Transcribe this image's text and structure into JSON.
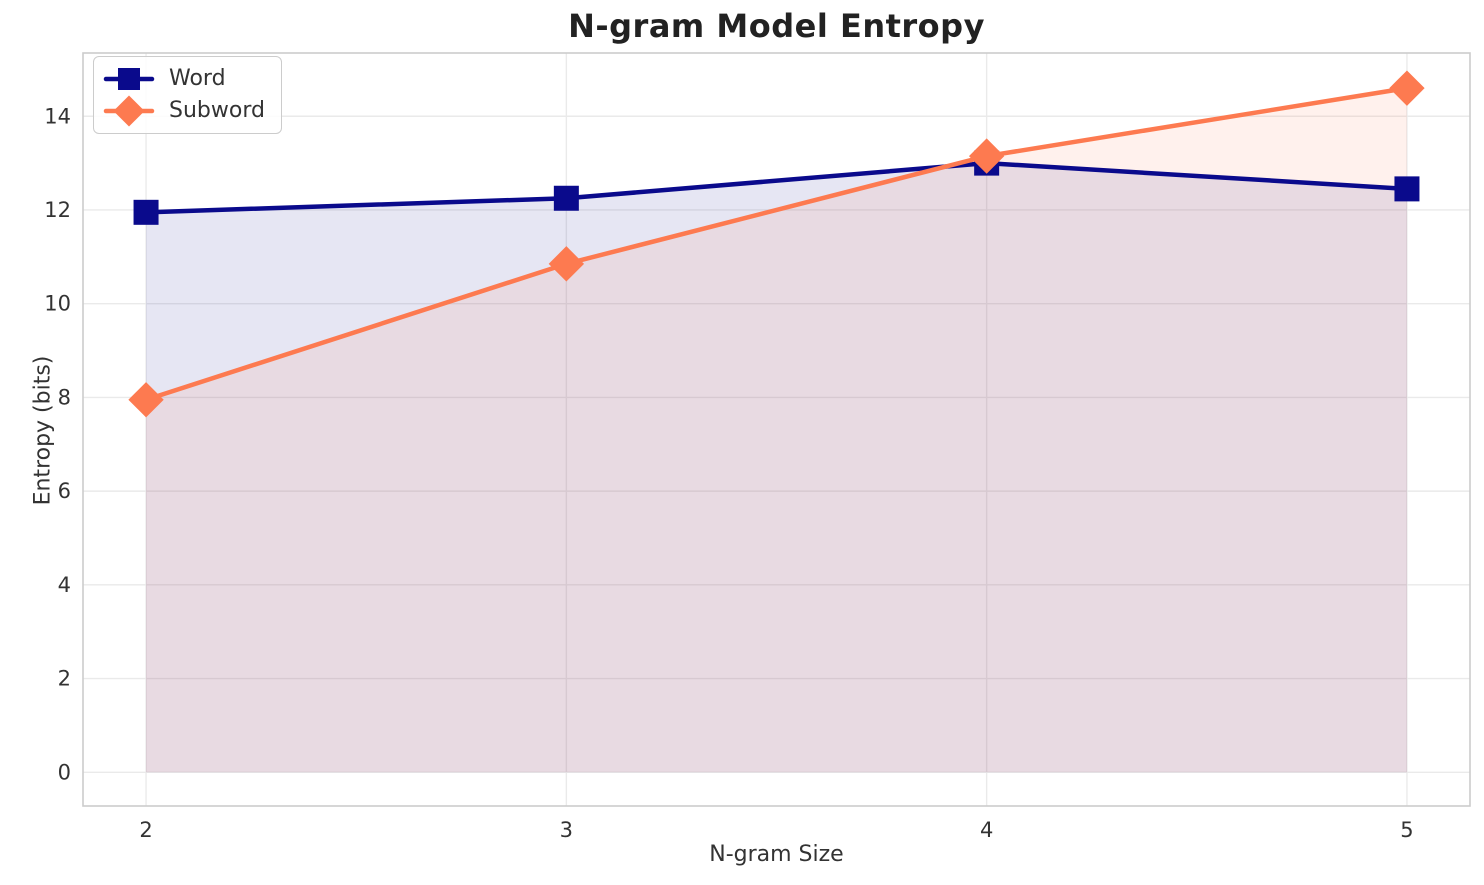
{
  "chart_data": {
    "type": "line",
    "title": "N-gram Model Entropy",
    "xlabel": "N-gram Size",
    "ylabel": "Entropy (bits)",
    "x": [
      2,
      3,
      4,
      5
    ],
    "series": [
      {
        "name": "Word",
        "values": [
          11.95,
          12.25,
          13.0,
          12.45
        ],
        "color": "#0a0a8c",
        "marker": "square",
        "fill_to_zero": true,
        "fill_alpha": 0.1
      },
      {
        "name": "Subword",
        "values": [
          7.95,
          10.85,
          13.15,
          14.6
        ],
        "color": "#fd7a50",
        "marker": "diamond",
        "fill_to_zero": true,
        "fill_alpha": 0.1
      }
    ],
    "xticks": [
      "2",
      "3",
      "4",
      "5"
    ],
    "xtick_values": [
      2,
      3,
      4,
      5
    ],
    "yticks": [
      "0",
      "2",
      "4",
      "6",
      "8",
      "10",
      "12",
      "14"
    ],
    "ytick_values": [
      0,
      2,
      4,
      6,
      8,
      10,
      12,
      14
    ],
    "xlim": [
      1.85,
      5.15
    ],
    "ylim": [
      -0.72,
      15.35
    ],
    "grid": true,
    "grid_color": "#eaeaea",
    "spine_color": "#cccccc",
    "tick_label_color": "#333333",
    "legend_position": "upper left",
    "line_width": 4.5,
    "marker_size": 25
  }
}
